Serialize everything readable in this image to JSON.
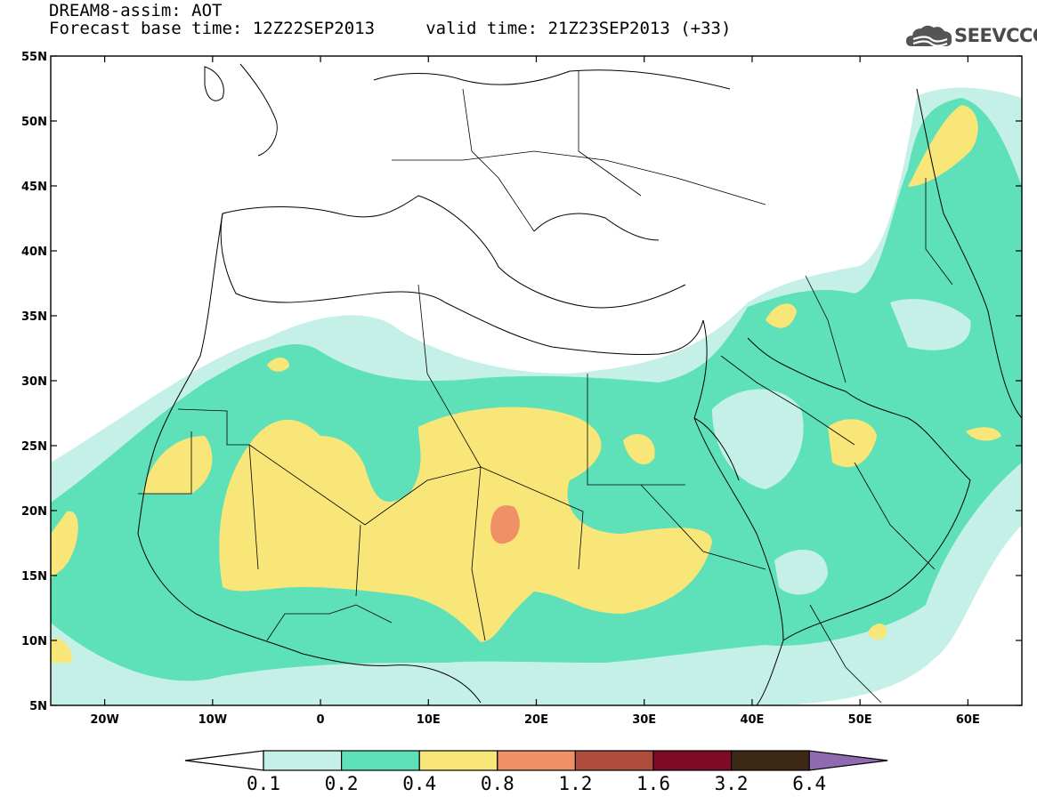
{
  "header": {
    "title": "DREAM8-assim: AOT",
    "subtitle": "Forecast base time: 12Z22SEP2013     valid time: 21Z23SEP2013 (+33)"
  },
  "logo": {
    "text": "SEEVCCC",
    "icon": "cloud-icon"
  },
  "map": {
    "projection": "lat-lon",
    "lon_range": [
      -25,
      65
    ],
    "lat_range": [
      5,
      55
    ],
    "lon_ticks": [
      {
        "value": -20,
        "label": "20W"
      },
      {
        "value": -10,
        "label": "10W"
      },
      {
        "value": 0,
        "label": "0"
      },
      {
        "value": 10,
        "label": "10E"
      },
      {
        "value": 20,
        "label": "20E"
      },
      {
        "value": 30,
        "label": "30E"
      },
      {
        "value": 40,
        "label": "40E"
      },
      {
        "value": 50,
        "label": "50E"
      },
      {
        "value": 60,
        "label": "60E"
      }
    ],
    "lat_ticks": [
      {
        "value": 55,
        "label": "55N"
      },
      {
        "value": 50,
        "label": "50N"
      },
      {
        "value": 45,
        "label": "45N"
      },
      {
        "value": 40,
        "label": "40N"
      },
      {
        "value": 35,
        "label": "35N"
      },
      {
        "value": 30,
        "label": "30N"
      },
      {
        "value": 25,
        "label": "25N"
      },
      {
        "value": 20,
        "label": "20N"
      },
      {
        "value": 15,
        "label": "15N"
      },
      {
        "value": 10,
        "label": "10N"
      },
      {
        "value": 5,
        "label": "5N"
      }
    ]
  },
  "colorbar": {
    "colors": [
      "#ffffff",
      "#c4f0e8",
      "#5ee0b8",
      "#f8e678",
      "#ee9166",
      "#b04c3c",
      "#7e0a28",
      "#3c2814",
      "#8f6ab0"
    ],
    "labels": [
      "0.1",
      "0.2",
      "0.4",
      "0.8",
      "1.2",
      "1.6",
      "3.2",
      "6.4"
    ]
  }
}
